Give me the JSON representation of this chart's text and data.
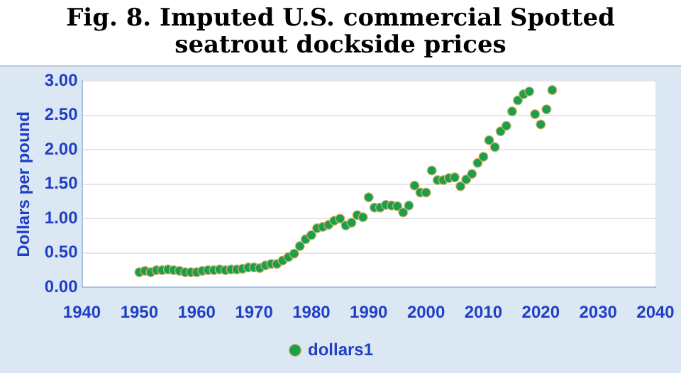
{
  "chart_data": {
    "type": "scatter",
    "title": "Fig. 8. Imputed U.S. commercial Spotted seatrout dockside prices",
    "ylabel": "Dollars per pound",
    "x": [
      1950,
      1951,
      1952,
      1953,
      1954,
      1955,
      1956,
      1957,
      1958,
      1959,
      1960,
      1961,
      1962,
      1963,
      1964,
      1965,
      1966,
      1967,
      1968,
      1969,
      1970,
      1971,
      1972,
      1973,
      1974,
      1975,
      1976,
      1977,
      1978,
      1979,
      1980,
      1981,
      1982,
      1983,
      1984,
      1985,
      1986,
      1987,
      1988,
      1989,
      1990,
      1991,
      1992,
      1993,
      1994,
      1995,
      1996,
      1997,
      1998,
      1999,
      2000,
      2001,
      2002,
      2003,
      2004,
      2005,
      2006,
      2007,
      2008,
      2009,
      2010,
      2011,
      2012,
      2013,
      2014,
      2015,
      2016,
      2017,
      2018,
      2019,
      2020,
      2021,
      2022
    ],
    "series": [
      {
        "name": "dollars1",
        "color": "#1aa04a",
        "values": [
          0.22,
          0.24,
          0.22,
          0.25,
          0.25,
          0.26,
          0.25,
          0.24,
          0.22,
          0.22,
          0.22,
          0.24,
          0.25,
          0.25,
          0.26,
          0.25,
          0.26,
          0.26,
          0.27,
          0.29,
          0.29,
          0.28,
          0.32,
          0.34,
          0.34,
          0.39,
          0.44,
          0.49,
          0.6,
          0.7,
          0.76,
          0.86,
          0.88,
          0.91,
          0.97,
          1.0,
          0.9,
          0.94,
          1.05,
          1.02,
          1.31,
          1.16,
          1.16,
          1.2,
          1.19,
          1.18,
          1.09,
          1.19,
          1.48,
          1.38,
          1.38,
          1.7,
          1.56,
          1.56,
          1.59,
          1.6,
          1.47,
          1.57,
          1.65,
          1.81,
          1.9,
          2.14,
          2.04,
          2.27,
          2.35,
          2.56,
          2.72,
          2.81,
          2.85,
          2.52,
          2.37,
          2.59,
          2.87
        ]
      }
    ],
    "xlim": [
      1940,
      2040
    ],
    "xticks": [
      1940,
      1950,
      1960,
      1970,
      1980,
      1990,
      2000,
      2010,
      2020,
      2030,
      2040
    ],
    "ylim": [
      0,
      3
    ],
    "yticks": [
      {
        "value": 0,
        "label": "0.00"
      },
      {
        "value": 0.5,
        "label": "0.50"
      },
      {
        "value": 1,
        "label": "1.00"
      },
      {
        "value": 1.5,
        "label": "1.50"
      },
      {
        "value": 2,
        "label": "2.00"
      },
      {
        "value": 2.5,
        "label": "2.50"
      },
      {
        "value": 3,
        "label": "3.00"
      }
    ],
    "grid": "y",
    "legend": "bottom",
    "marker": "circle"
  }
}
